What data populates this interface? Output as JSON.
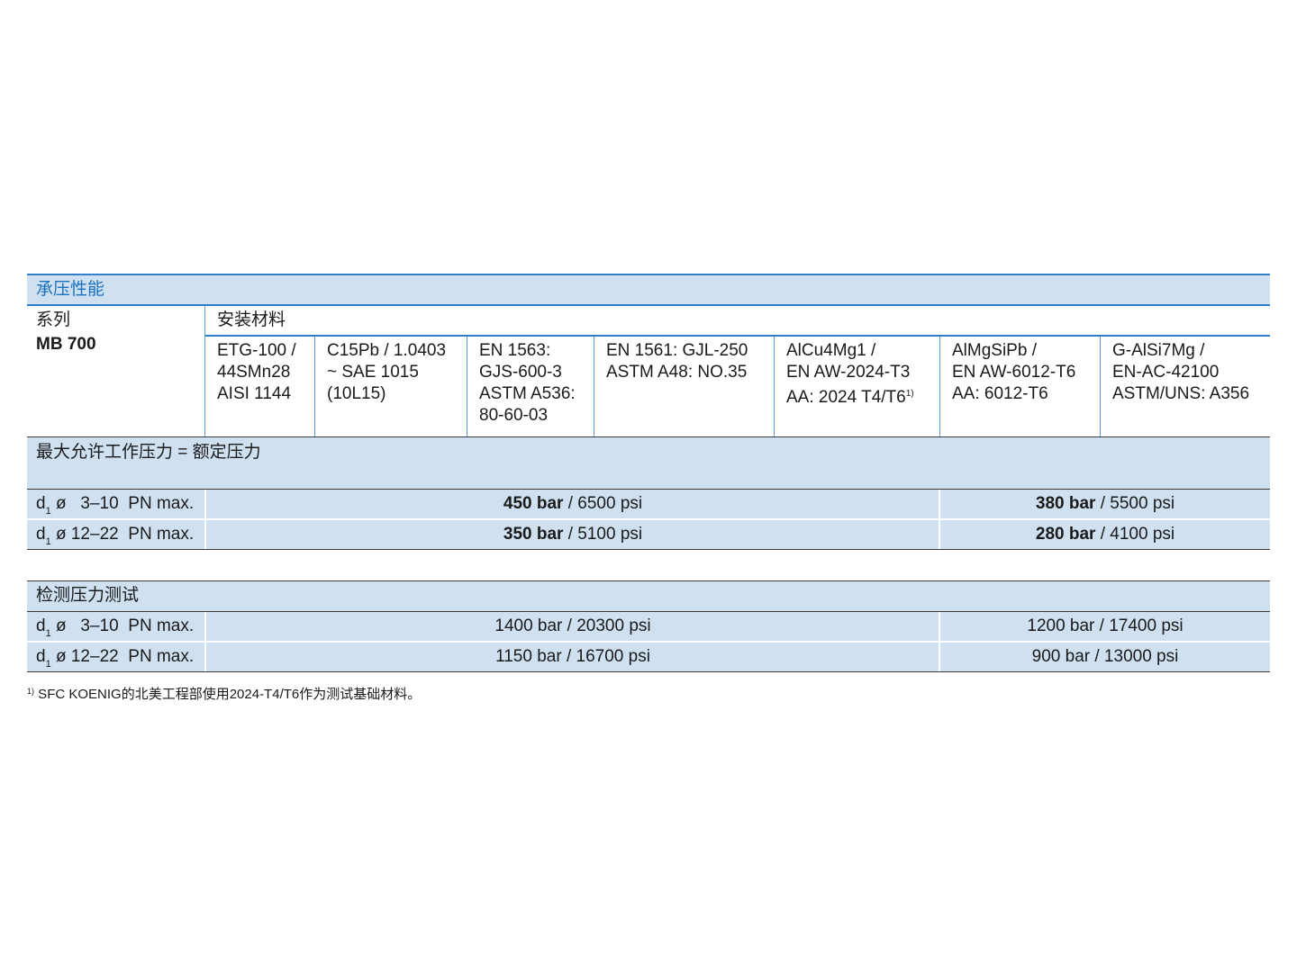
{
  "section_title": "承压性能",
  "series_label": "系列",
  "series_value": "MB 700",
  "materials_label": "安装材料",
  "materials": [
    {
      "text": "ETG-100 /\n44SMn28\nAISI 1144"
    },
    {
      "text": "C15Pb / 1.0403\n~ SAE 1015\n(10L15)"
    },
    {
      "text": "EN 1563:\nGJS-600-3\nASTM A536:\n80-60-03"
    },
    {
      "text": "EN 1561: GJL-250\nASTM A48: NO.35"
    },
    {
      "text": "AlCu4Mg1 /\nEN AW-2024-T3\nAA: 2024 T4/T6",
      "footnote_mark": "1)"
    },
    {
      "text": "AlMgSiPb /\nEN AW-6012-T6\nAA: 6012-T6"
    },
    {
      "text": "G-AlSi7Mg /\nEN-AC-42100\nASTM/UNS: A356"
    }
  ],
  "working_pressure": {
    "title": "最大允许工作压力 = 额定压力",
    "rows": [
      {
        "d": "d",
        "sub": "1",
        "range": "ø   3–10",
        "pn": "PN max.",
        "val1_bar": "450 bar",
        "val1_psi": " / 6500 psi",
        "val2_bar": "380 bar",
        "val2_psi": " / 5500 psi"
      },
      {
        "d": "d",
        "sub": "1",
        "range": "ø 12–22",
        "pn": "PN max.",
        "val1_bar": "350 bar",
        "val1_psi": " / 5100 psi",
        "val2_bar": "280 bar",
        "val2_psi": " / 4100 psi"
      }
    ]
  },
  "test_pressure": {
    "title": "检测压力测试",
    "rows": [
      {
        "d": "d",
        "sub": "1",
        "range": "ø   3–10",
        "pn": "PN max.",
        "val1": "1400 bar / 20300 psi",
        "val2": "1200 bar / 17400 psi"
      },
      {
        "d": "d",
        "sub": "1",
        "range": "ø 12–22",
        "pn": "PN max.",
        "val1": "1150 bar / 16700 psi",
        "val2": "900 bar / 13000 psi"
      }
    ]
  },
  "footnote": {
    "mark": "1)",
    "text": " SFC KOENIG的北美工程部使用2024-T4/T6作为测试基础材料。"
  },
  "colors": {
    "band": "#cfe0f1",
    "accent_line": "#2f7fc8",
    "title_text": "#1a73c0"
  }
}
